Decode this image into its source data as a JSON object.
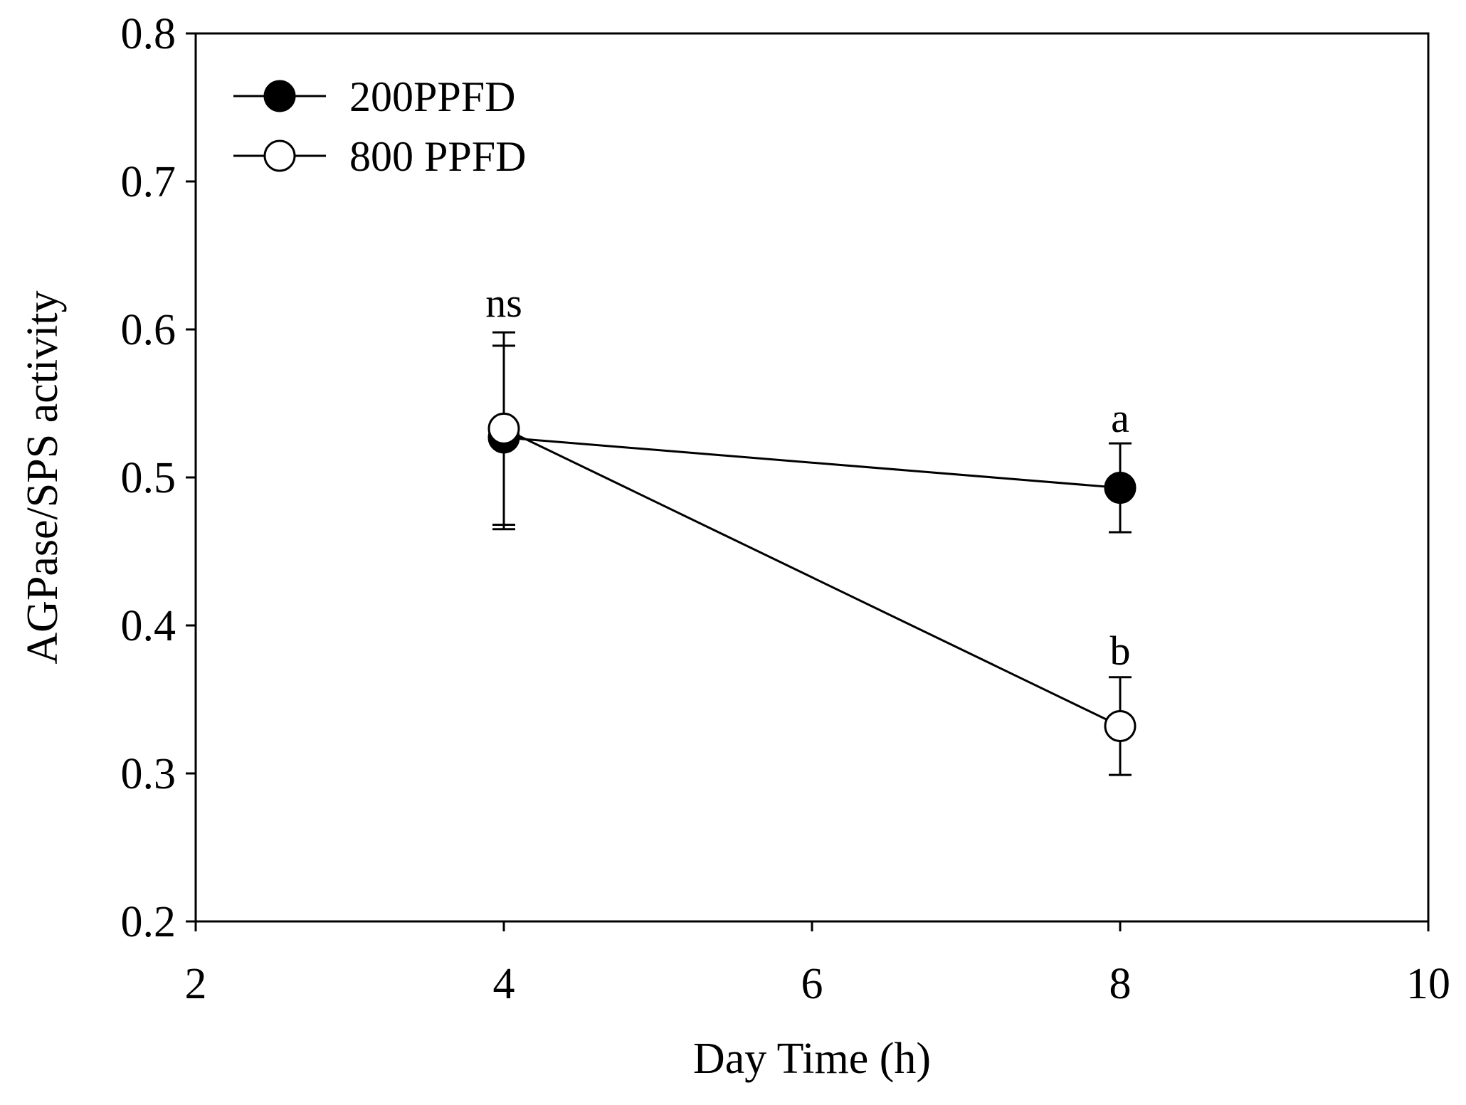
{
  "chart_data": {
    "type": "line",
    "title": "",
    "xlabel": "Day Time (h)",
    "ylabel": "AGPase/SPS activity",
    "xlim": [
      2,
      10
    ],
    "ylim": [
      0.2,
      0.8
    ],
    "xticks": [
      2,
      4,
      6,
      8,
      10
    ],
    "yticks": [
      0.2,
      0.3,
      0.4,
      0.5,
      0.6,
      0.7,
      0.8
    ],
    "xtick_labels": [
      "2",
      "4",
      "6",
      "8",
      "10"
    ],
    "ytick_labels": [
      "0.2",
      "0.3",
      "0.4",
      "0.5",
      "0.6",
      "0.7",
      "0.8"
    ],
    "grid": false,
    "legend_position": "top-left",
    "series": [
      {
        "name": "200PPFD",
        "marker": "filled-circle",
        "color": "#000000",
        "x": [
          4,
          8
        ],
        "y": [
          0.527,
          0.493
        ],
        "err": [
          0.062,
          0.03
        ]
      },
      {
        "name": "800 PPFD",
        "marker": "open-circle",
        "color": "#000000",
        "x": [
          4,
          8
        ],
        "y": [
          0.533,
          0.332
        ],
        "err": [
          0.065,
          0.033
        ]
      }
    ],
    "annotations": [
      {
        "text": "ns",
        "x": 4,
        "y": 0.6
      },
      {
        "text": "a",
        "x": 8,
        "y": 0.522
      },
      {
        "text": "b",
        "x": 8,
        "y": 0.365
      }
    ]
  }
}
